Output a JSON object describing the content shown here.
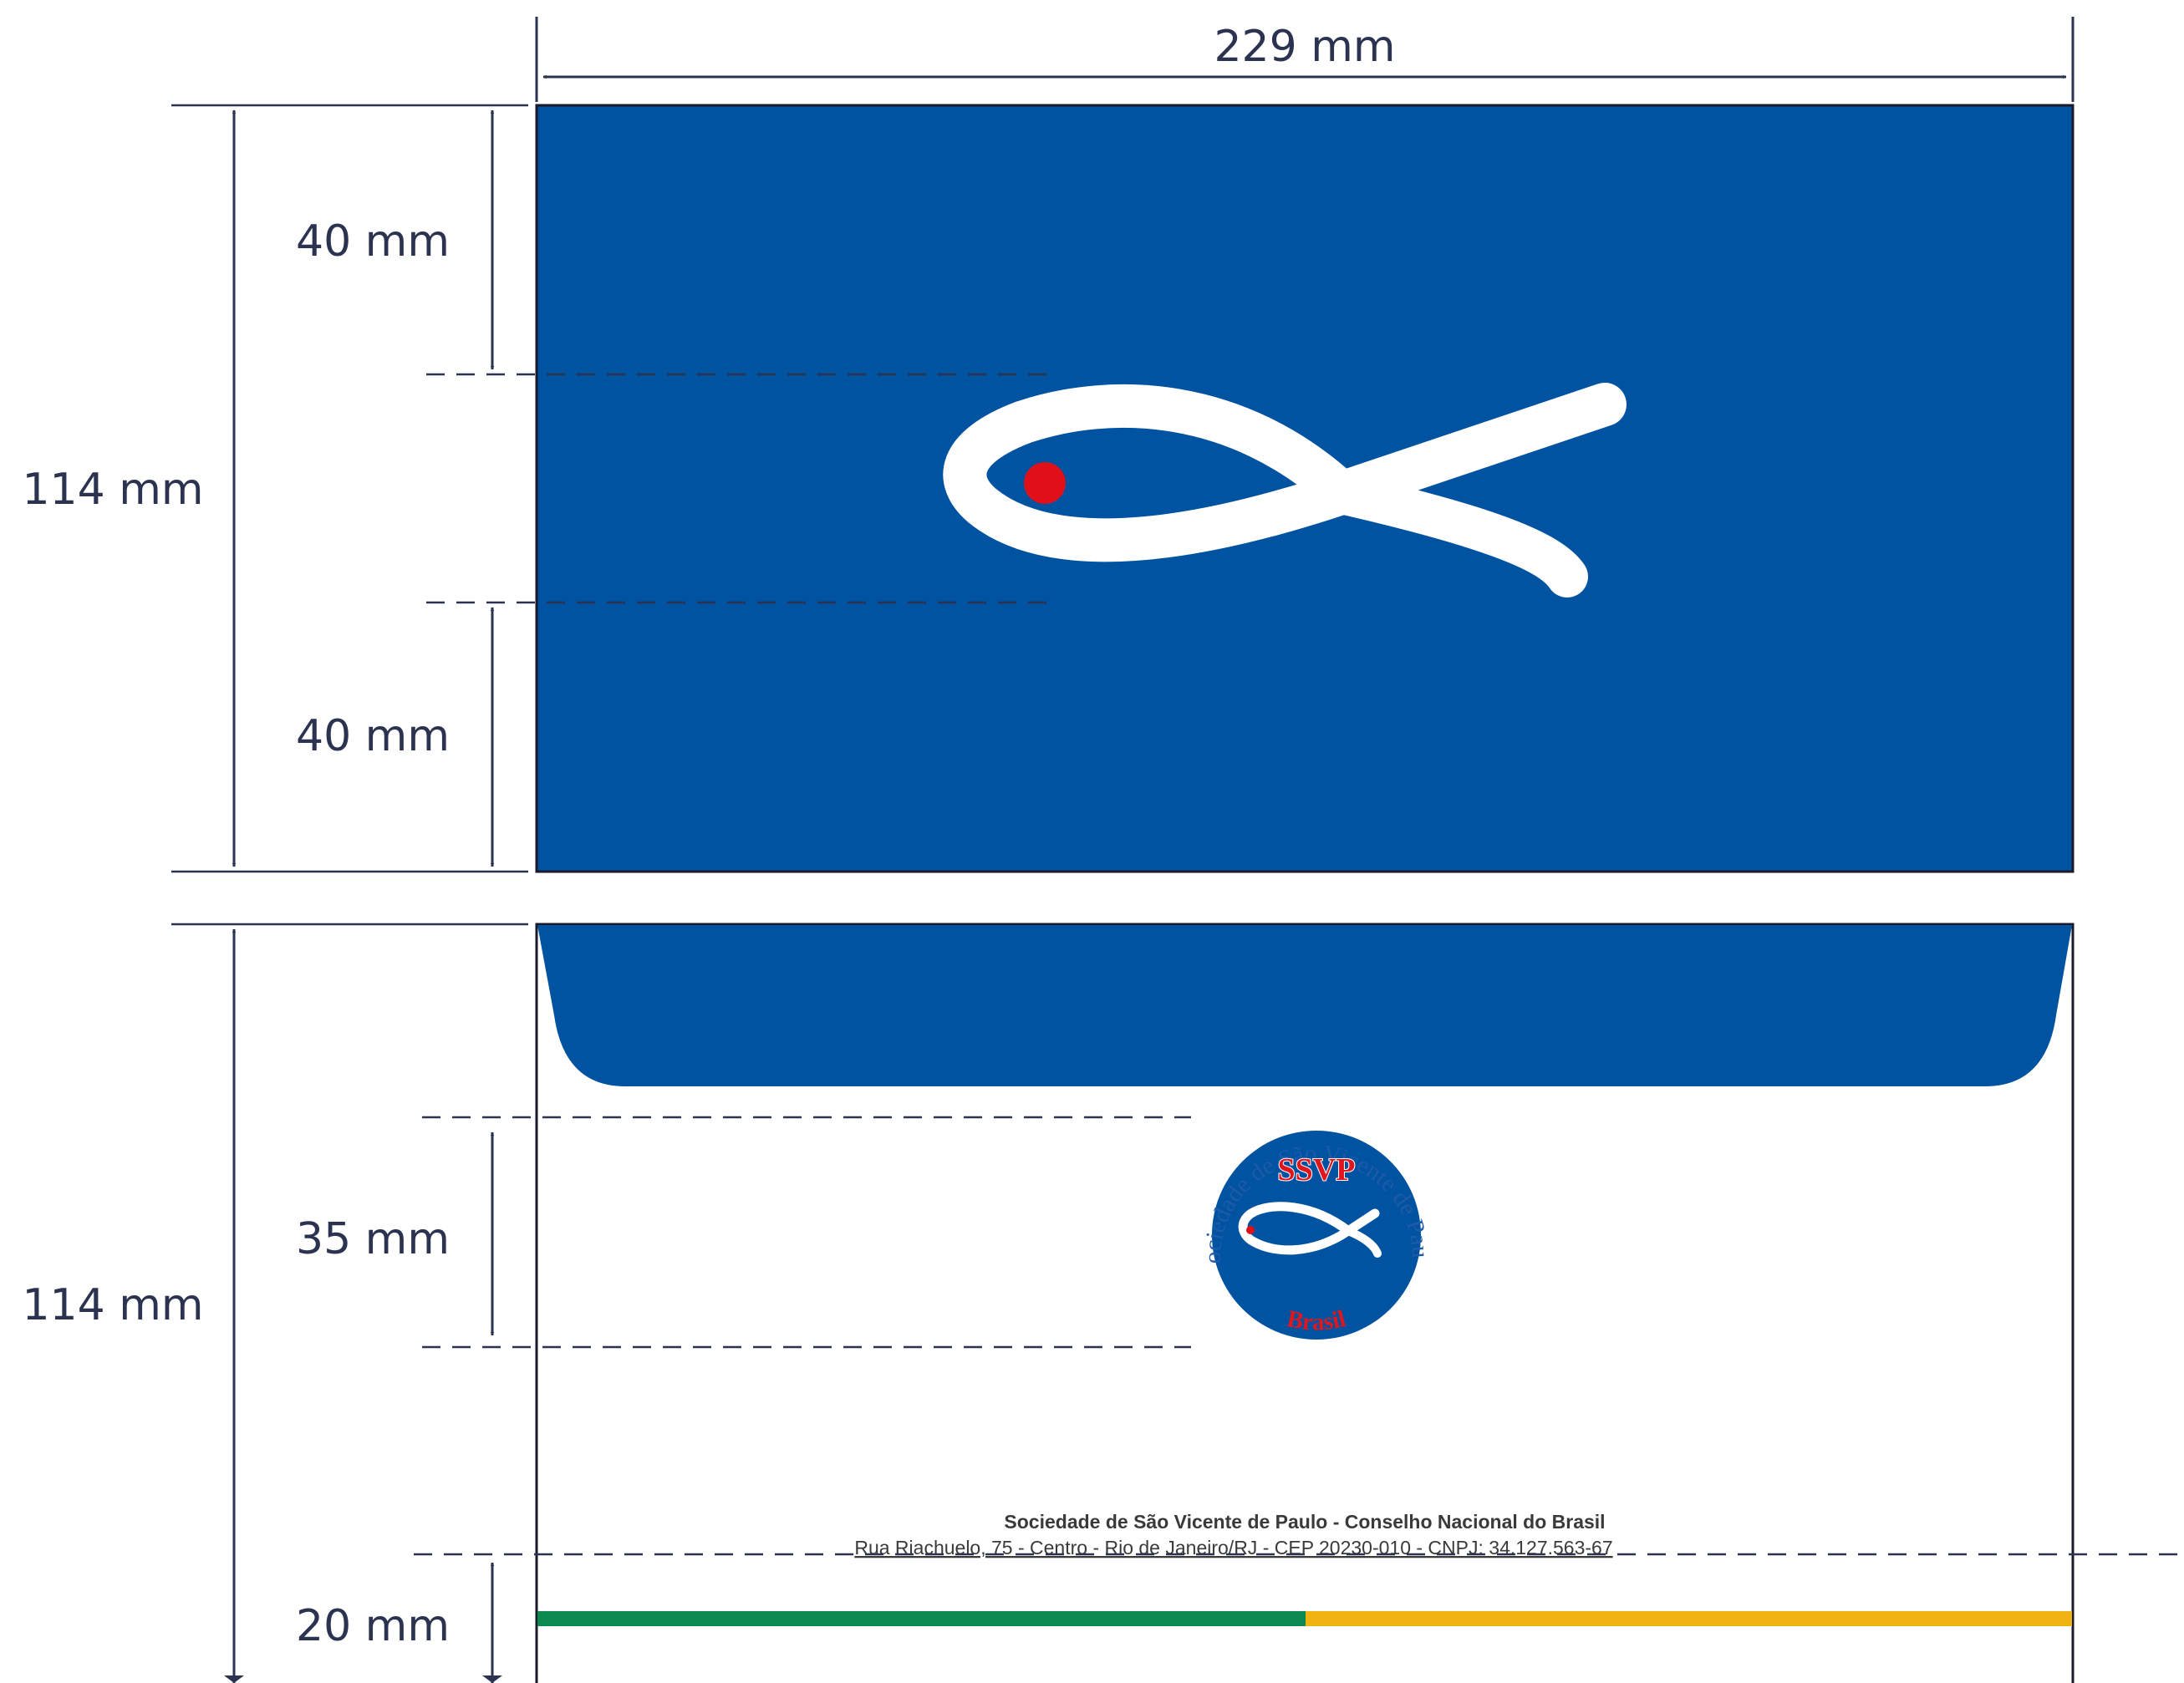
{
  "colors": {
    "envelope_blue": "#0053a0",
    "accent_red": "#e0101a",
    "stripe_green": "#0a8a4f",
    "stripe_yellow": "#f0b412",
    "dimension_line": "#2b3350"
  },
  "dimensions": {
    "width": "229 mm",
    "front_height": "114 mm",
    "front_top_margin": "40 mm",
    "front_bottom_margin": "40 mm",
    "back_height": "114 mm",
    "back_logo_height": "35 mm",
    "back_bottom_margin": "20 mm"
  },
  "front": {
    "icon": "ichthys-fish-icon"
  },
  "back": {
    "seal": {
      "ring_text": "Sociedade de São Vicente de Paulo",
      "abbreviation": "SSVP",
      "motto": "serviens in spe",
      "country": "Brasil",
      "icon": "ichthys-fish-icon"
    },
    "footer": {
      "title": "Sociedade de São Vicente de Paulo - Conselho Nacional do Brasil",
      "address": "Rua Riachuelo, 75 - Centro - Rio de Janeiro/RJ - CEP 20230-010 - CNPJ: 34.127.563-67"
    },
    "stripe_colors": [
      "green",
      "yellow"
    ]
  }
}
